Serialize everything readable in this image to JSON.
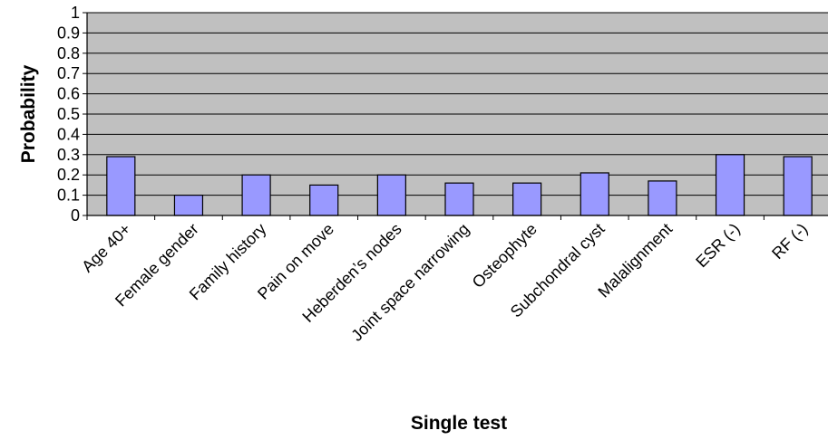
{
  "chart_data": {
    "type": "bar",
    "title": "",
    "xlabel": "Single test",
    "ylabel": "Probability",
    "ylim": [
      0,
      1
    ],
    "yticks": [
      "0",
      "0.1",
      "0.2",
      "0.3",
      "0.4",
      "0.5",
      "0.6",
      "0.7",
      "0.8",
      "0.9",
      "1"
    ],
    "grid": true,
    "legend": "none",
    "categories": [
      "Age 40+",
      "Female gender",
      "Family history",
      "Pain on move",
      "Heberden’s nodes",
      "Joint space narrowing",
      "Osteophyte",
      "Subchondral cyst",
      "Malalignment",
      "ESR (-)",
      "RF (-)"
    ],
    "values": [
      0.29,
      0.1,
      0.2,
      0.15,
      0.2,
      0.16,
      0.16,
      0.21,
      0.17,
      0.3,
      0.29
    ],
    "colors": {
      "plot_background": "#c0c0c0",
      "bar_fill": "#9999ff",
      "bar_stroke": "#000000",
      "gridline": "#000000"
    }
  }
}
